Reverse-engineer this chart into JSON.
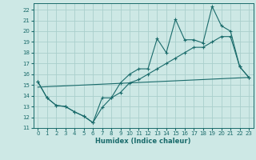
{
  "xlabel": "Humidex (Indice chaleur)",
  "bg_color": "#cde8e5",
  "grid_color": "#aacfcc",
  "line_color": "#1a6b6b",
  "xlim": [
    -0.5,
    23.5
  ],
  "ylim": [
    11,
    22.6
  ],
  "yticks": [
    11,
    12,
    13,
    14,
    15,
    16,
    17,
    18,
    19,
    20,
    21,
    22
  ],
  "xticks": [
    0,
    1,
    2,
    3,
    4,
    5,
    6,
    7,
    8,
    9,
    10,
    11,
    12,
    13,
    14,
    15,
    16,
    17,
    18,
    19,
    20,
    21,
    22,
    23
  ],
  "line1_x": [
    0,
    1,
    2,
    3,
    4,
    5,
    6,
    7,
    8,
    9,
    10,
    11,
    12,
    13,
    14,
    15,
    16,
    17,
    18,
    19,
    20,
    21,
    22,
    23
  ],
  "line1_y": [
    15.3,
    13.8,
    13.1,
    13.0,
    12.5,
    12.1,
    11.5,
    12.9,
    13.8,
    15.2,
    16.0,
    16.5,
    16.5,
    19.3,
    18.0,
    21.1,
    19.2,
    19.2,
    18.9,
    22.3,
    20.5,
    20.0,
    16.7,
    15.7
  ],
  "line2_x": [
    0,
    1,
    2,
    3,
    4,
    5,
    6,
    7,
    8,
    9,
    10,
    11,
    12,
    13,
    14,
    15,
    16,
    17,
    18,
    19,
    20,
    21,
    22,
    23
  ],
  "line2_y": [
    15.3,
    13.8,
    13.1,
    13.0,
    12.5,
    12.1,
    11.5,
    13.8,
    13.8,
    14.3,
    15.2,
    15.5,
    16.0,
    16.5,
    17.0,
    17.5,
    18.0,
    18.5,
    18.5,
    19.0,
    19.5,
    19.5,
    16.7,
    15.7
  ],
  "line3_x": [
    0,
    23
  ],
  "line3_y": [
    14.8,
    15.7
  ]
}
